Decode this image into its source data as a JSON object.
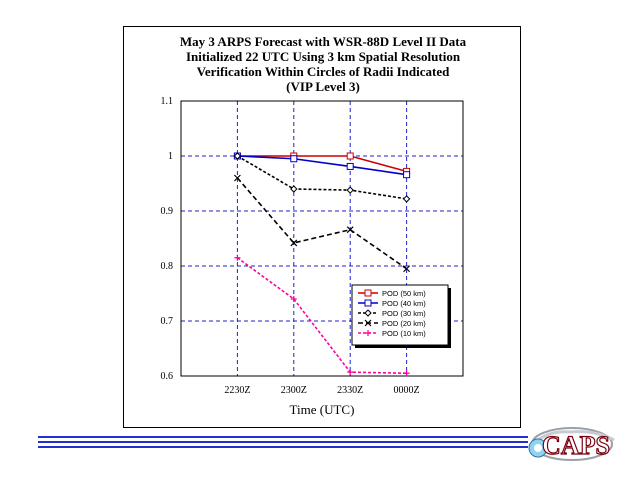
{
  "chart_data": {
    "type": "line",
    "title": [
      "May 3 ARPS Forecast with WSR-88D Level II Data",
      "Initialized 22 UTC Using 3 km Spatial Resolution",
      "Verification Within Circles of Radii Indicated",
      "(VIP Level 3)"
    ],
    "xlabel": "Time (UTC)",
    "ylabel": "",
    "categories": [
      "2230Z",
      "2300Z",
      "2330Z",
      "0000Z"
    ],
    "ylim": [
      0.6,
      1.1
    ],
    "yticks": [
      "0.6",
      "0.7",
      "0.8",
      "0.9",
      "1",
      "1.1"
    ],
    "grid": true,
    "legend_position": "lower-right",
    "series": [
      {
        "name": "POD (50 km)",
        "values": [
          1.0,
          1.0,
          1.0,
          0.972
        ],
        "color": "#cc0000",
        "dash": "none",
        "marker": "square"
      },
      {
        "name": "POD (40 km)",
        "values": [
          1.0,
          0.995,
          0.981,
          0.966
        ],
        "color": "#0000cc",
        "dash": "none",
        "marker": "square"
      },
      {
        "name": "POD (30 km)",
        "values": [
          1.0,
          0.94,
          0.938,
          0.922
        ],
        "color": "#000000",
        "dash": "3,2",
        "marker": "diamond"
      },
      {
        "name": "POD (20 km)",
        "values": [
          0.96,
          0.842,
          0.866,
          0.795
        ],
        "color": "#000000",
        "dash": "5,3",
        "marker": "x"
      },
      {
        "name": "POD (10 km)",
        "values": [
          0.815,
          0.74,
          0.607,
          0.605
        ],
        "color": "#ff0099",
        "dash": "3,2",
        "marker": "plus"
      }
    ]
  },
  "footer": {
    "stripe_color": "#1f2fd0",
    "logo_text": "CAPS"
  }
}
